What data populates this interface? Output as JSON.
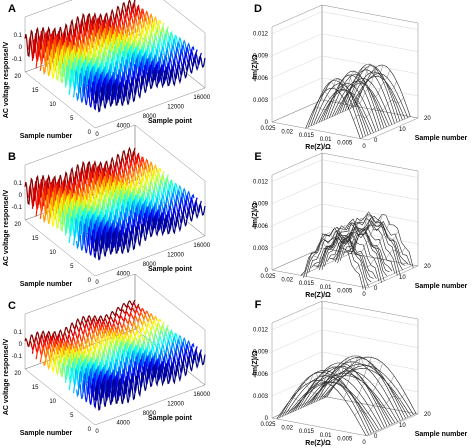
{
  "panels": [
    {
      "label": "A",
      "type": "waterfall",
      "z_ticks": [
        "-0.1",
        "0",
        "0.1"
      ],
      "y_ticks": [
        "0",
        "5",
        "10",
        "15",
        "20"
      ],
      "x_ticks": [
        "4000",
        "8000",
        "12000",
        "16000"
      ],
      "ylabel": "Sample number",
      "xlabel": "Sample point",
      "zlabel": "AC voltage response/V"
    },
    {
      "label": "B",
      "type": "waterfall",
      "z_ticks": [
        "-0.1",
        "0",
        "0.1"
      ],
      "y_ticks": [
        "0",
        "5",
        "10",
        "15",
        "20"
      ],
      "x_ticks": [
        "4000",
        "8000",
        "12000",
        "16000"
      ],
      "ylabel": "Sample number",
      "xlabel": "Sample point",
      "zlabel": "AC voltage response/V"
    },
    {
      "label": "C",
      "type": "waterfall",
      "z_ticks": [
        "-0.1",
        "0",
        "0.1"
      ],
      "y_ticks": [
        "0",
        "5",
        "10",
        "15",
        "20"
      ],
      "x_ticks": [
        "4000",
        "8000",
        "12000",
        "16000"
      ],
      "ylabel": "Sample number",
      "xlabel": "Sample point",
      "zlabel": "AC voltage response/V"
    },
    {
      "label": "D",
      "type": "nyquist3d",
      "z_ticks": [
        "0",
        "0.003",
        "0.006",
        "0.009",
        "0.012"
      ],
      "x_ticks": [
        "0.025",
        "0.02",
        "0.015",
        "0.01",
        "0.005",
        "0"
      ],
      "y_ticks": [
        "0",
        "10",
        "20"
      ],
      "zlabel": "-Im(Z)/Ω",
      "xlabel": "Re(Z)/Ω",
      "ylabel": "Sample number"
    },
    {
      "label": "E",
      "type": "nyquist3d",
      "z_ticks": [
        "0",
        "0.003",
        "0.006",
        "0.009",
        "0.012"
      ],
      "x_ticks": [
        "0.025",
        "0.02",
        "0.015",
        "0.01",
        "0.005",
        "0"
      ],
      "y_ticks": [
        "0",
        "10",
        "20"
      ],
      "zlabel": "-Im(Z)/Ω",
      "xlabel": "Re(Z)/Ω",
      "ylabel": "Sample number"
    },
    {
      "label": "F",
      "type": "nyquist3d",
      "z_ticks": [
        "0",
        "0.003",
        "0.006",
        "0.009",
        "0.012"
      ],
      "x_ticks": [
        "0.025",
        "0.02",
        "0.015",
        "0.01",
        "0.005",
        "0"
      ],
      "y_ticks": [
        "0",
        "10",
        "20"
      ],
      "zlabel": "-Im(Z)/Ω",
      "xlabel": "Re(Z)/Ω",
      "ylabel": "Sample number"
    }
  ],
  "chart_data": [
    {
      "type": "line",
      "panel": "A",
      "title": "",
      "xlabel": "Sample point",
      "ylabel": "Sample number",
      "zlabel": "AC voltage response/V",
      "xlim": [
        0,
        16000
      ],
      "ylim": [
        0,
        20
      ],
      "zlim": [
        -0.1,
        0.1
      ],
      "series_count": 20,
      "colormap": "jet"
    },
    {
      "type": "line",
      "panel": "B",
      "title": "",
      "xlabel": "Sample point",
      "ylabel": "Sample number",
      "zlabel": "AC voltage response/V",
      "xlim": [
        0,
        16000
      ],
      "ylim": [
        0,
        20
      ],
      "zlim": [
        -0.1,
        0.1
      ],
      "series_count": 20,
      "colormap": "jet"
    },
    {
      "type": "line",
      "panel": "C",
      "title": "",
      "xlabel": "Sample point",
      "ylabel": "Sample number",
      "zlabel": "AC voltage response/V",
      "xlim": [
        0,
        16000
      ],
      "ylim": [
        0,
        20
      ],
      "zlim": [
        -0.1,
        0.1
      ],
      "series_count": 20,
      "colormap": "jet"
    },
    {
      "type": "line",
      "panel": "D",
      "title": "",
      "xlabel": "Re(Z)/Ω",
      "ylabel": "Sample number",
      "zlabel": "-Im(Z)/Ω",
      "xlim": [
        0,
        0.025
      ],
      "ylim": [
        0,
        20
      ],
      "zlim": [
        0,
        0.012
      ],
      "arc_re_range": [
        0.002,
        0.012
      ],
      "arc_peak": 0.009
    },
    {
      "type": "line",
      "panel": "E",
      "title": "",
      "xlabel": "Re(Z)/Ω",
      "ylabel": "Sample number",
      "zlabel": "-Im(Z)/Ω",
      "xlim": [
        0,
        0.025
      ],
      "ylim": [
        0,
        20
      ],
      "zlim": [
        0,
        0.012
      ],
      "arc_re_range": [
        0.002,
        0.013
      ],
      "arc_peak": 0.008
    },
    {
      "type": "line",
      "panel": "F",
      "title": "",
      "xlabel": "Re(Z)/Ω",
      "ylabel": "Sample number",
      "zlabel": "-Im(Z)/Ω",
      "xlim": [
        0,
        0.025
      ],
      "ylim": [
        0,
        20
      ],
      "zlim": [
        0,
        0.012
      ],
      "arc_re_range": [
        0.0,
        0.02
      ],
      "arc_peak": 0.009
    }
  ]
}
